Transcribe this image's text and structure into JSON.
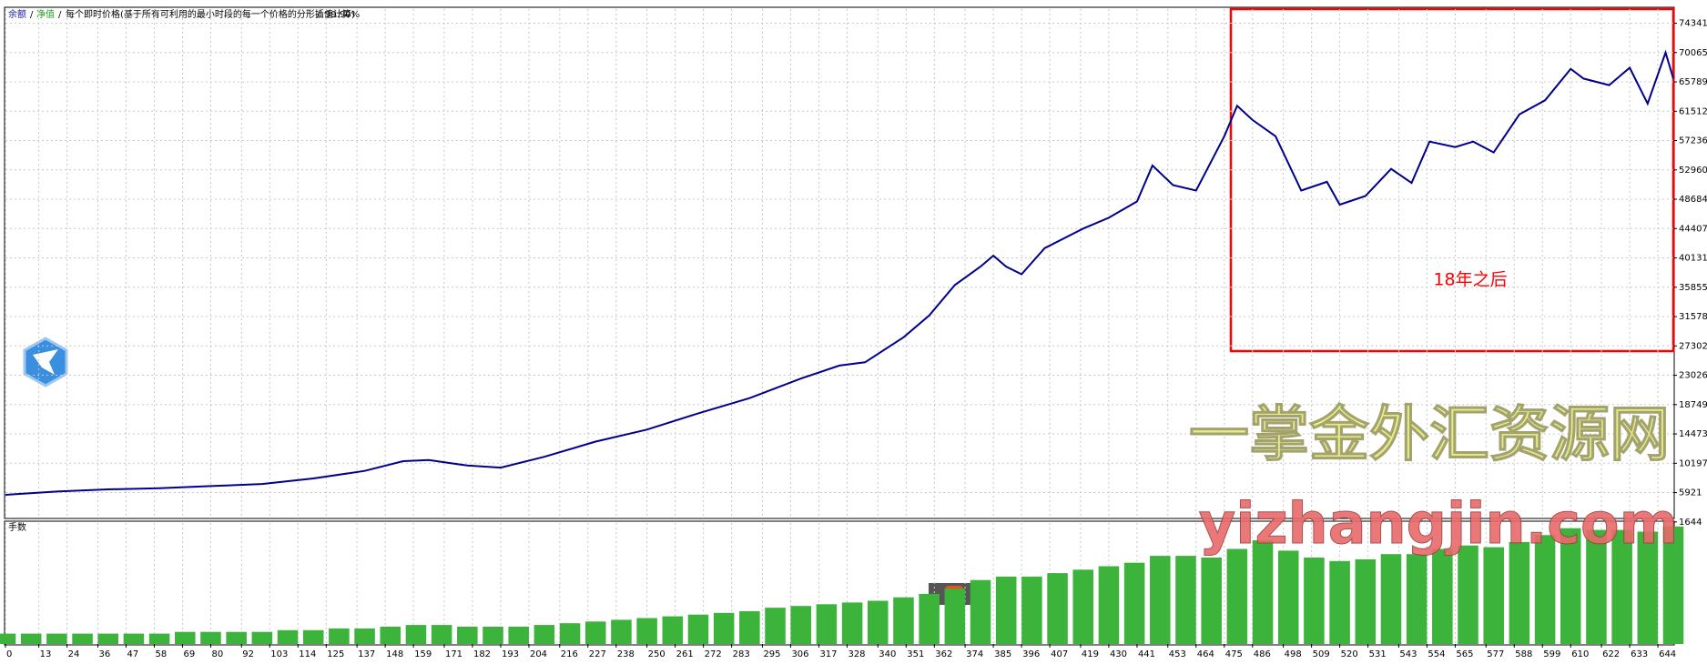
{
  "header": {
    "balance_label": "余额",
    "equity_label": "净值",
    "subtitle": "每个即时价格(基于所有可利用的最小时段的每一个价格的分形插值计算)",
    "quality": "99.90%"
  },
  "watermark": {
    "title": "一掌金外汇资源网",
    "url": "yizhangjin.com"
  },
  "chart_data": [
    {
      "type": "line",
      "annotation": "18年之后",
      "annotation_color": "#ff0000",
      "grid": true,
      "x": [
        0,
        20,
        40,
        60,
        80,
        100,
        120,
        140,
        155,
        165,
        180,
        193,
        210,
        230,
        250,
        270,
        290,
        310,
        325,
        335,
        350,
        360,
        370,
        380,
        385,
        390,
        396,
        405,
        420,
        430,
        441,
        447,
        455,
        464,
        475,
        480,
        486,
        495,
        505,
        515,
        520,
        530,
        540,
        548,
        555,
        565,
        572,
        580,
        590,
        600,
        610,
        615,
        625,
        633,
        640,
        647,
        650
      ],
      "series": [
        {
          "name": "余额",
          "color": "#00008b",
          "values": [
            5600,
            6070,
            6390,
            6550,
            6870,
            7180,
            7980,
            9080,
            10510,
            10660,
            9870,
            9560,
            11140,
            13360,
            15100,
            17480,
            19690,
            22540,
            24440,
            24920,
            28560,
            31730,
            36170,
            38860,
            40450,
            38860,
            37750,
            41550,
            44400,
            45990,
            48360,
            53590,
            50740,
            49950,
            57870,
            62300,
            60240,
            57870,
            49950,
            51220,
            47890,
            49150,
            53110,
            51060,
            57080,
            56290,
            57080,
            55500,
            61040,
            63100,
            67690,
            66270,
            65310,
            67850,
            62620,
            70060,
            66270
          ]
        }
      ],
      "xlim": [
        0,
        650
      ],
      "ylim": [
        2283,
        76400
      ],
      "xticks": [
        0,
        13,
        24,
        36,
        47,
        58,
        69,
        80,
        92,
        103,
        114,
        125,
        137,
        148,
        159,
        171,
        182,
        193,
        204,
        216,
        227,
        238,
        250,
        261,
        272,
        283,
        295,
        306,
        317,
        328,
        340,
        351,
        362,
        374,
        385,
        396,
        407,
        419,
        430,
        441,
        453,
        464,
        475,
        486,
        498,
        509,
        520,
        531,
        543,
        554,
        565,
        577,
        588,
        599,
        610,
        622,
        633,
        644
      ],
      "yticks": [
        1644,
        5921,
        10197,
        14473,
        18749,
        23026,
        27302,
        31578,
        35855,
        40131,
        44407,
        48684,
        52960,
        57236,
        61512,
        65789,
        70065,
        74341
      ]
    },
    {
      "type": "bar",
      "title": "手数",
      "color": "#3cb43c",
      "xlim": [
        0,
        650
      ],
      "ylim": [
        0,
        7
      ],
      "x": [
        0,
        10,
        20,
        30,
        40,
        50,
        60,
        70,
        80,
        90,
        100,
        110,
        120,
        130,
        140,
        150,
        160,
        170,
        180,
        190,
        200,
        210,
        220,
        230,
        240,
        250,
        260,
        270,
        280,
        290,
        300,
        310,
        320,
        330,
        340,
        350,
        360,
        370,
        380,
        390,
        400,
        410,
        420,
        430,
        440,
        450,
        460,
        470,
        480,
        490,
        500,
        510,
        520,
        530,
        540,
        550,
        560,
        570,
        580,
        590,
        600,
        610,
        620,
        630,
        640,
        650
      ],
      "values": [
        0.6,
        0.6,
        0.6,
        0.6,
        0.6,
        0.6,
        0.6,
        0.7,
        0.7,
        0.7,
        0.7,
        0.8,
        0.8,
        0.9,
        0.9,
        1.0,
        1.1,
        1.1,
        1.0,
        1.0,
        1.0,
        1.1,
        1.2,
        1.3,
        1.4,
        1.5,
        1.6,
        1.7,
        1.8,
        1.9,
        2.1,
        2.2,
        2.3,
        2.4,
        2.5,
        2.7,
        2.9,
        3.2,
        3.7,
        3.9,
        3.9,
        4.1,
        4.3,
        4.5,
        4.7,
        5.1,
        5.1,
        5.0,
        5.5,
        6.0,
        5.4,
        5.0,
        4.8,
        4.9,
        5.2,
        5.2,
        5.5,
        5.7,
        5.6,
        5.9,
        6.3,
        6.7,
        6.6,
        6.6,
        6.5,
        6.8
      ]
    }
  ]
}
